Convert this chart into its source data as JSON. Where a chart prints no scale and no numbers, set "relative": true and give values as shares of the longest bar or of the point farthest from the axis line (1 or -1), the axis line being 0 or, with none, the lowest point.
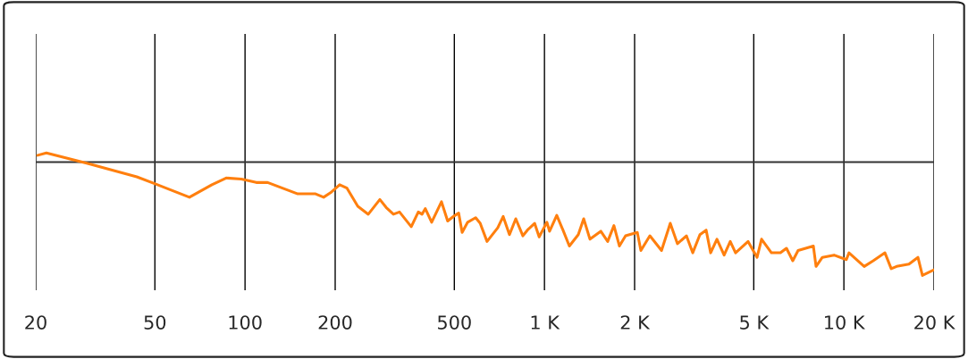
{
  "chart_data": {
    "type": "line",
    "relative": true,
    "log": "x",
    "grid": "x",
    "marker": "none",
    "line_style": "solid",
    "xlim": [
      20,
      20000
    ],
    "xticks": [
      20,
      50,
      100,
      200,
      500,
      {
        "value": 1000,
        "label": "1 K"
      },
      {
        "value": 2000,
        "label": "2 K"
      },
      {
        "value": 5000,
        "label": "5 K"
      },
      {
        "value": 10000,
        "label": "10 K"
      },
      {
        "value": 20000,
        "label": "20 K"
      }
    ],
    "ref_lines": [
      {
        "axis": "y",
        "value": 0,
        "color": "#333333"
      }
    ],
    "series": [
      {
        "color": "#ff7f0e",
        "x": [
          20.3,
          21.7,
          29.6,
          43.5,
          49.9,
          65.2,
          77.5,
          86.5,
          97.2,
          109,
          119,
          150,
          172,
          183,
          193,
          207,
          219,
          238,
          258,
          282,
          296,
          313,
          328,
          359,
          379,
          390,
          400,
          420,
          453,
          475,
          496,
          517,
          531,
          554,
          589,
          610,
          643,
          698,
          728,
          764,
          802,
          847,
          877,
          927,
          960,
          1019,
          1040,
          1099,
          1153,
          1211,
          1297,
          1352,
          1419,
          1542,
          1626,
          1706,
          1779,
          1866,
          2042,
          2099,
          2249,
          2460,
          2631,
          2781,
          2979,
          3127,
          3305,
          3467,
          3589,
          3767,
          3981,
          4173,
          4347,
          4787,
          5129,
          5309,
          5729,
          6138,
          6430,
          6749,
          7031,
          7907,
          8073,
          8474,
          9268,
          10190,
          10400,
          11690,
          12530,
          13710,
          14390,
          15000,
          16490,
          17670,
          18290,
          20000
        ],
        "values": [
          0.06,
          0.08,
          -0.01,
          -0.13,
          -0.19,
          -0.31,
          -0.2,
          -0.14,
          -0.15,
          -0.18,
          -0.18,
          -0.28,
          -0.28,
          -0.31,
          -0.27,
          -0.2,
          -0.23,
          -0.39,
          -0.46,
          -0.33,
          -0.4,
          -0.46,
          -0.44,
          -0.57,
          -0.44,
          -0.46,
          -0.41,
          -0.53,
          -0.35,
          -0.52,
          -0.48,
          -0.45,
          -0.62,
          -0.53,
          -0.49,
          -0.54,
          -0.7,
          -0.58,
          -0.48,
          -0.64,
          -0.5,
          -0.65,
          -0.6,
          -0.54,
          -0.66,
          -0.53,
          -0.61,
          -0.47,
          -0.6,
          -0.74,
          -0.64,
          -0.5,
          -0.68,
          -0.61,
          -0.7,
          -0.56,
          -0.74,
          -0.65,
          -0.62,
          -0.78,
          -0.65,
          -0.78,
          -0.54,
          -0.72,
          -0.65,
          -0.8,
          -0.64,
          -0.6,
          -0.8,
          -0.68,
          -0.82,
          -0.7,
          -0.8,
          -0.7,
          -0.84,
          -0.68,
          -0.8,
          -0.8,
          -0.76,
          -0.87,
          -0.78,
          -0.74,
          -0.92,
          -0.84,
          -0.82,
          -0.86,
          -0.8,
          -0.92,
          -0.87,
          -0.8,
          -0.94,
          -0.92,
          -0.9,
          -0.84,
          -1,
          -0.95
        ]
      }
    ]
  }
}
